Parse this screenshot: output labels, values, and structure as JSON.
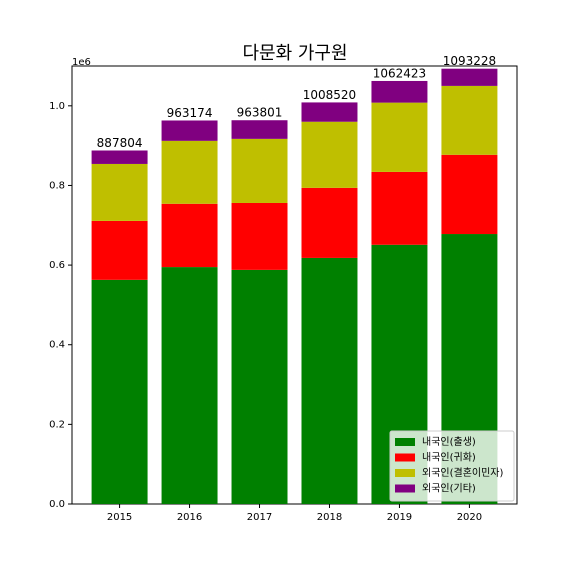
{
  "chart_data": {
    "type": "stacked_bar",
    "title": "다문화 가구원",
    "categories": [
      "2015",
      "2016",
      "2017",
      "2018",
      "2019",
      "2020"
    ],
    "series": [
      {
        "name": "내국인(출생)",
        "color": "#008000",
        "values": [
          563000,
          595000,
          588000,
          618000,
          651000,
          678000
        ]
      },
      {
        "name": "내국인(귀화)",
        "color": "#ff0000",
        "values": [
          148000,
          159000,
          168000,
          176000,
          183000,
          199000
        ]
      },
      {
        "name": "외국인(결혼이민자)",
        "color": "#bfbf00",
        "values": [
          143000,
          158000,
          161000,
          166000,
          174000,
          173000
        ]
      },
      {
        "name": "외국인(기타)",
        "color": "#800080",
        "values": [
          33804,
          51174,
          46801,
          48520,
          54423,
          43228
        ]
      }
    ],
    "totals": [
      887804,
      963174,
      963801,
      1008520,
      1062423,
      1093228
    ],
    "ylim": [
      0,
      1100000
    ],
    "yticks": [
      {
        "value": 0,
        "label": "0.0"
      },
      {
        "value": 200000,
        "label": "0.2"
      },
      {
        "value": 400000,
        "label": "0.4"
      },
      {
        "value": 600000,
        "label": "0.6"
      },
      {
        "value": 800000,
        "label": "0.8"
      },
      {
        "value": 1000000,
        "label": "1.0"
      }
    ],
    "y_offset_label": "1e6",
    "legend": "lower right"
  }
}
